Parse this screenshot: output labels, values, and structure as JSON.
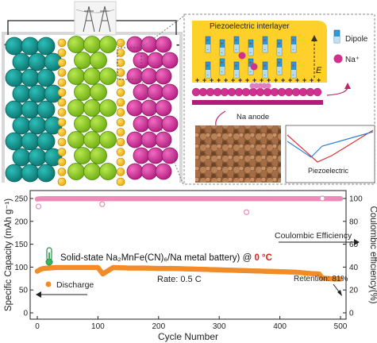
{
  "schematic": {
    "electrode_plus": "+",
    "electrode_minus": "-",
    "piezo_interlayer_label": "Piezoelectric interlayer",
    "dipole_label": "Dipole",
    "na_label": "Na⁺",
    "field_label": "E",
    "na_anode_label": "Na anode",
    "piezoelectric_label": "Piezoelectric"
  },
  "chart_data": {
    "type": "scatter",
    "title_prefix": "Solid-state Na₂MnFe(CN)₆/Na metal battery) @ ",
    "title_temp": "0 °C",
    "xlabel": "Cycle Number",
    "ylabel_left": "Specific Capacity (mAh g⁻¹)",
    "ylabel_right": "Coulombic efficiency(%)",
    "xlim": [
      -10,
      510
    ],
    "ylim_left": [
      0,
      250
    ],
    "ylim_right": [
      0,
      100
    ],
    "x_ticks": [
      "0",
      "100",
      "200",
      "300",
      "400",
      "500"
    ],
    "y_left_ticks": [
      "0",
      "50",
      "100",
      "150",
      "200",
      "250"
    ],
    "y_right_ticks": [
      "0",
      "20",
      "40",
      "60",
      "80",
      "100"
    ],
    "rate_label": "Rate: 0.5 C",
    "retention_label": "Retention: 81%",
    "ce_legend": "Coulombic Efficiency",
    "discharge_legend": "Discharge",
    "series": [
      {
        "name": "Discharge",
        "axis": "left",
        "color": "#f28c28",
        "x": [
          0,
          5,
          10,
          20,
          30,
          50,
          75,
          100,
          108,
          125,
          150,
          175,
          200,
          225,
          250,
          275,
          300,
          325,
          350,
          375,
          400,
          425,
          450,
          465,
          470,
          480,
          490,
          500
        ],
        "y": [
          91,
          95,
          97,
          98,
          99,
          99,
          99,
          99,
          85,
          99,
          98,
          98,
          97,
          97,
          96,
          95,
          94,
          93,
          92,
          91,
          90,
          89,
          86,
          85,
          76,
          75,
          74,
          74
        ]
      },
      {
        "name": "Coulombic Efficiency",
        "axis": "right",
        "color": "#f08ab8",
        "x": [
          0,
          5,
          10,
          25,
          50,
          75,
          100,
          105,
          125,
          150,
          175,
          200,
          225,
          250,
          275,
          300,
          325,
          350,
          375,
          400,
          425,
          450,
          475,
          500
        ],
        "y": [
          99.5,
          99.8,
          99.9,
          99.9,
          99.9,
          99.9,
          99.9,
          99.9,
          99.9,
          99.9,
          99.9,
          99.9,
          99.9,
          99.9,
          99.9,
          99.9,
          99.9,
          99.9,
          99.9,
          99.9,
          99.9,
          99.9,
          99.9,
          99.9
        ]
      }
    ],
    "ce_outliers": {
      "x": [
        2,
        107,
        345,
        470
      ],
      "y": [
        93,
        95,
        88,
        100
      ]
    }
  }
}
